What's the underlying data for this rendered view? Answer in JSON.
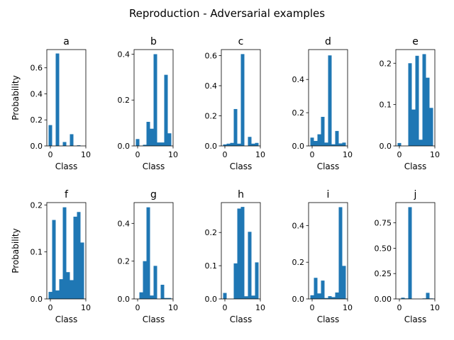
{
  "figure": {
    "suptitle": "Reproduction - Adversarial examples",
    "xlabel": "Class",
    "ylabel": "Probability",
    "bar_color": "#1f77b4"
  },
  "chart_data": [
    {
      "type": "bar",
      "title": "a",
      "xlabel": "Class",
      "ylabel": "Probability",
      "x": [
        0,
        1,
        2,
        3,
        4,
        5,
        6,
        7,
        8,
        9
      ],
      "values": [
        0.16,
        0.0,
        0.71,
        0.0,
        0.03,
        0.0,
        0.09,
        0.0,
        0.005,
        0.0
      ],
      "xlim": [
        -1,
        10
      ],
      "ylim": [
        0,
        0.74
      ],
      "xticks": [
        0,
        10
      ],
      "yticks": [
        0.0,
        0.2,
        0.4,
        0.6
      ],
      "ytick_labels": [
        "0.0",
        "0.2",
        "0.4",
        "0.6"
      ]
    },
    {
      "type": "bar",
      "title": "b",
      "xlabel": "Class",
      "ylabel": "",
      "x": [
        0,
        1,
        2,
        3,
        4,
        5,
        6,
        7,
        8,
        9
      ],
      "values": [
        0.03,
        0.0,
        0.005,
        0.105,
        0.075,
        0.4,
        0.015,
        0.015,
        0.31,
        0.055
      ],
      "xlim": [
        -1,
        10
      ],
      "ylim": [
        0,
        0.42
      ],
      "xticks": [
        0,
        10
      ],
      "yticks": [
        0.0,
        0.2,
        0.4
      ],
      "ytick_labels": [
        "0.0",
        "0.2",
        "0.4"
      ]
    },
    {
      "type": "bar",
      "title": "c",
      "xlabel": "Class",
      "ylabel": "",
      "x": [
        0,
        1,
        2,
        3,
        4,
        5,
        6,
        7,
        8,
        9
      ],
      "values": [
        0.01,
        0.015,
        0.02,
        0.245,
        0.015,
        0.61,
        0.0,
        0.06,
        0.015,
        0.02
      ],
      "xlim": [
        -1,
        10
      ],
      "ylim": [
        0,
        0.64
      ],
      "xticks": [
        0,
        10
      ],
      "yticks": [
        0.0,
        0.2,
        0.4,
        0.6
      ],
      "ytick_labels": [
        "0.0",
        "0.2",
        "0.4",
        "0.6"
      ]
    },
    {
      "type": "bar",
      "title": "d",
      "xlabel": "Class",
      "ylabel": "",
      "x": [
        0,
        1,
        2,
        3,
        4,
        5,
        6,
        7,
        8,
        9
      ],
      "values": [
        0.05,
        0.03,
        0.07,
        0.175,
        0.02,
        0.545,
        0.01,
        0.09,
        0.015,
        0.02
      ],
      "xlim": [
        -1,
        10
      ],
      "ylim": [
        0,
        0.58
      ],
      "xticks": [
        0,
        10
      ],
      "yticks": [
        0.0,
        0.2,
        0.4
      ],
      "ytick_labels": [
        "0.0",
        "0.2",
        "0.4"
      ]
    },
    {
      "type": "bar",
      "title": "e",
      "xlabel": "Class",
      "ylabel": "",
      "x": [
        0,
        1,
        2,
        3,
        4,
        5,
        6,
        7,
        8,
        9
      ],
      "values": [
        0.007,
        0.0,
        0.0,
        0.2,
        0.088,
        0.218,
        0.015,
        0.222,
        0.165,
        0.092
      ],
      "xlim": [
        -1,
        10
      ],
      "ylim": [
        0,
        0.233
      ],
      "xticks": [
        0,
        10
      ],
      "yticks": [
        0.0,
        0.1,
        0.2
      ],
      "ytick_labels": [
        "0.0",
        "0.1",
        "0.2"
      ]
    },
    {
      "type": "bar",
      "title": "f",
      "xlabel": "Class",
      "ylabel": "Probability",
      "x": [
        0,
        1,
        2,
        3,
        4,
        5,
        6,
        7,
        8,
        9
      ],
      "values": [
        0.015,
        0.168,
        0.018,
        0.042,
        0.195,
        0.057,
        0.04,
        0.175,
        0.185,
        0.12
      ],
      "xlim": [
        -1,
        10
      ],
      "ylim": [
        0,
        0.205
      ],
      "xticks": [
        0,
        10
      ],
      "yticks": [
        0.0,
        0.1,
        0.2
      ],
      "ytick_labels": [
        "0.0",
        "0.1",
        "0.2"
      ]
    },
    {
      "type": "bar",
      "title": "g",
      "xlabel": "Class",
      "ylabel": "",
      "x": [
        0,
        1,
        2,
        3,
        4,
        5,
        6,
        7,
        8,
        9
      ],
      "values": [
        0.0,
        0.035,
        0.2,
        0.485,
        0.018,
        0.175,
        0.0,
        0.075,
        0.005,
        0.005
      ],
      "xlim": [
        -1,
        10
      ],
      "ylim": [
        0,
        0.51
      ],
      "xticks": [
        0,
        10
      ],
      "yticks": [
        0.0,
        0.2,
        0.4
      ],
      "ytick_labels": [
        "0.0",
        "0.2",
        "0.4"
      ]
    },
    {
      "type": "bar",
      "title": "h",
      "xlabel": "Class",
      "ylabel": "",
      "x": [
        0,
        1,
        2,
        3,
        4,
        5,
        6,
        7,
        8,
        9
      ],
      "values": [
        0.018,
        0.0,
        0.0,
        0.107,
        0.272,
        0.277,
        0.008,
        0.202,
        0.01,
        0.11
      ],
      "xlim": [
        -1,
        10
      ],
      "ylim": [
        0,
        0.29
      ],
      "xticks": [
        0,
        10
      ],
      "yticks": [
        0.0,
        0.1,
        0.2
      ],
      "ytick_labels": [
        "0.0",
        "0.1",
        "0.2"
      ]
    },
    {
      "type": "bar",
      "title": "i",
      "xlabel": "Class",
      "ylabel": "",
      "x": [
        0,
        1,
        2,
        3,
        4,
        5,
        6,
        7,
        8,
        9
      ],
      "values": [
        0.02,
        0.115,
        0.03,
        0.1,
        0.005,
        0.015,
        0.01,
        0.035,
        0.5,
        0.18
      ],
      "xlim": [
        -1,
        10
      ],
      "ylim": [
        0,
        0.525
      ],
      "xticks": [
        0,
        10
      ],
      "yticks": [
        0.0,
        0.2,
        0.4
      ],
      "ytick_labels": [
        "0.0",
        "0.2",
        "0.4"
      ]
    },
    {
      "type": "bar",
      "title": "j",
      "xlabel": "Class",
      "ylabel": "",
      "x": [
        0,
        1,
        2,
        3,
        4,
        5,
        6,
        7,
        8,
        9
      ],
      "values": [
        0.0,
        0.012,
        0.005,
        0.905,
        0.0,
        0.0,
        0.0,
        0.005,
        0.06,
        0.005
      ],
      "xlim": [
        -1,
        10
      ],
      "ylim": [
        0,
        0.95
      ],
      "xticks": [
        0,
        10
      ],
      "yticks": [
        0.0,
        0.25,
        0.5,
        0.75
      ],
      "ytick_labels": [
        "0.00",
        "0.25",
        "0.50",
        "0.75"
      ]
    }
  ]
}
